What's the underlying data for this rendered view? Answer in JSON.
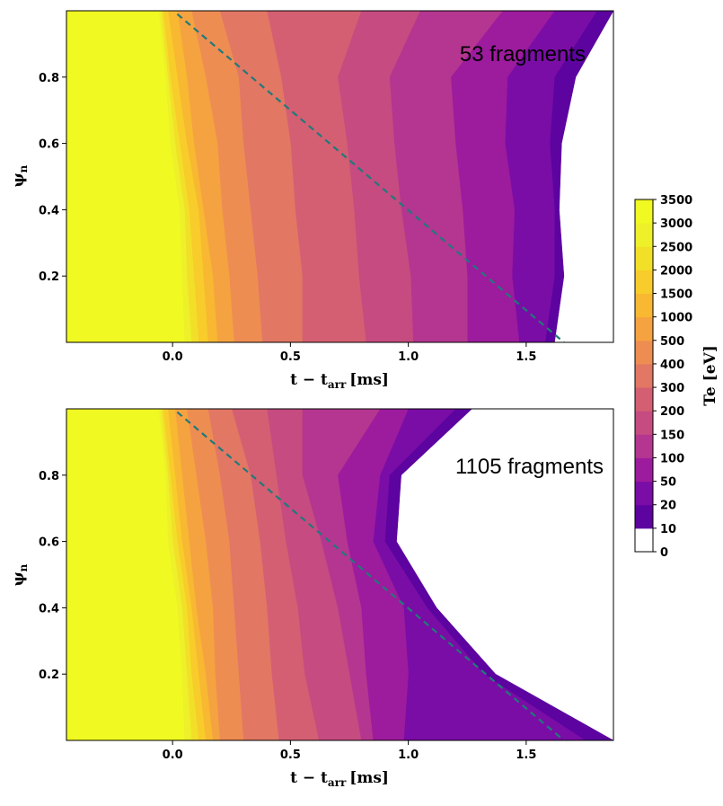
{
  "chart_data": [
    {
      "type": "heatmap",
      "subtype": "filled-contour",
      "xlabel_main": "t − t",
      "xlabel_sub": "arr",
      "xlabel_unit": "[ms]",
      "ylabel_main": "ψ",
      "ylabel_sub": "n",
      "xlim": [
        -0.45,
        1.87
      ],
      "ylim": [
        0.0,
        1.0
      ],
      "x_ticks": [
        0.0,
        0.5,
        1.0,
        1.5
      ],
      "x_tick_labels": [
        "0.0",
        "0.5",
        "1.0",
        "1.5"
      ],
      "y_ticks": [
        0.2,
        0.4,
        0.6,
        0.8
      ],
      "y_tick_labels": [
        "0.2",
        "0.4",
        "0.6",
        "0.8"
      ],
      "annotation": "53 fragments",
      "reference_line": {
        "style": "dashed",
        "color": "#1f7a7a",
        "x": [
          0.02,
          1.66
        ],
        "y": [
          0.99,
          0.0
        ]
      },
      "te_profile_lower_bounds_eV": [
        0,
        10,
        20,
        50,
        100,
        150,
        200,
        300,
        400,
        500,
        1000,
        1500,
        2000,
        2500,
        3000
      ],
      "level_boundaries_x_at_psi": [
        {
          "psi": 0.0,
          "x": [
            1.62,
            1.58,
            1.47,
            1.25,
            1.02,
            0.82,
            0.55,
            0.38,
            0.26,
            0.19,
            0.15,
            0.11,
            0.08,
            0.05
          ]
        },
        {
          "psi": 0.2,
          "x": [
            1.66,
            1.62,
            1.44,
            1.25,
            1.01,
            0.79,
            0.55,
            0.36,
            0.24,
            0.17,
            0.13,
            0.09,
            0.06,
            0.04
          ]
        },
        {
          "psi": 0.4,
          "x": [
            1.64,
            1.62,
            1.45,
            1.23,
            0.97,
            0.77,
            0.52,
            0.33,
            0.21,
            0.13,
            0.11,
            0.07,
            0.05,
            0.03
          ]
        },
        {
          "psi": 0.6,
          "x": [
            1.65,
            1.6,
            1.41,
            1.2,
            0.94,
            0.74,
            0.5,
            0.3,
            0.19,
            0.09,
            0.06,
            0.03,
            0.01,
            -0.01
          ]
        },
        {
          "psi": 0.8,
          "x": [
            1.71,
            1.62,
            1.42,
            1.18,
            0.92,
            0.7,
            0.46,
            0.28,
            0.14,
            0.06,
            0.02,
            -0.01,
            -0.02,
            -0.03
          ]
        },
        {
          "psi": 1.0,
          "x": [
            1.87,
            1.8,
            1.62,
            1.4,
            1.05,
            0.8,
            0.4,
            0.2,
            0.08,
            0.02,
            -0.02,
            -0.04,
            -0.05,
            -0.06
          ]
        }
      ]
    },
    {
      "type": "heatmap",
      "subtype": "filled-contour",
      "xlabel_main": "t − t",
      "xlabel_sub": "arr",
      "xlabel_unit": "[ms]",
      "ylabel_main": "ψ",
      "ylabel_sub": "n",
      "xlim": [
        -0.45,
        1.87
      ],
      "ylim": [
        0.0,
        1.0
      ],
      "x_ticks": [
        0.0,
        0.5,
        1.0,
        1.5
      ],
      "x_tick_labels": [
        "0.0",
        "0.5",
        "1.0",
        "1.5"
      ],
      "y_ticks": [
        0.2,
        0.4,
        0.6,
        0.8
      ],
      "y_tick_labels": [
        "0.2",
        "0.4",
        "0.6",
        "0.8"
      ],
      "annotation": "1105 fragments",
      "reference_line": {
        "style": "dashed",
        "color": "#1f7a7a",
        "x": [
          0.02,
          1.66
        ],
        "y": [
          0.99,
          0.0
        ]
      },
      "te_profile_lower_bounds_eV": [
        0,
        10,
        20,
        50,
        100,
        150,
        200,
        300,
        400,
        500,
        1000,
        1500,
        2000,
        2500,
        3000
      ],
      "level_boundaries_x_at_psi": [
        {
          "psi": 0.0,
          "x": [
            1.87,
            1.75,
            0.98,
            0.85,
            0.8,
            0.62,
            0.45,
            0.3,
            0.2,
            0.17,
            0.14,
            0.11,
            0.08,
            0.05
          ]
        },
        {
          "psi": 0.2,
          "x": [
            1.37,
            1.32,
            1.0,
            0.82,
            0.75,
            0.56,
            0.42,
            0.28,
            0.18,
            0.14,
            0.11,
            0.08,
            0.06,
            0.04
          ]
        },
        {
          "psi": 0.4,
          "x": [
            1.12,
            1.08,
            0.98,
            0.8,
            0.7,
            0.53,
            0.4,
            0.26,
            0.17,
            0.1,
            0.08,
            0.06,
            0.04,
            0.02
          ]
        },
        {
          "psi": 0.6,
          "x": [
            0.95,
            0.9,
            0.85,
            0.74,
            0.63,
            0.48,
            0.37,
            0.24,
            0.14,
            0.07,
            0.04,
            0.02,
            0.0,
            -0.02
          ]
        },
        {
          "psi": 0.8,
          "x": [
            0.97,
            0.92,
            0.88,
            0.7,
            0.55,
            0.44,
            0.33,
            0.2,
            0.1,
            0.04,
            0.01,
            -0.01,
            -0.02,
            -0.03
          ]
        },
        {
          "psi": 1.0,
          "x": [
            1.27,
            1.2,
            1.0,
            0.88,
            0.55,
            0.4,
            0.25,
            0.15,
            0.06,
            0.01,
            -0.02,
            -0.04,
            -0.05,
            -0.06
          ]
        }
      ]
    }
  ],
  "colorbar": {
    "label": "Te [eV]",
    "levels": [
      0,
      10,
      20,
      50,
      100,
      150,
      200,
      300,
      400,
      500,
      1000,
      1500,
      2000,
      2500,
      3000,
      3500
    ],
    "level_labels": [
      "0",
      "10",
      "20",
      "50",
      "100",
      "150",
      "200",
      "300",
      "400",
      "500",
      "1000",
      "1500",
      "2000",
      "2500",
      "3000",
      "3500"
    ],
    "colors": [
      "#ffffff",
      "#5c03a0",
      "#7a0da6",
      "#9d1b9d",
      "#b43690",
      "#c64b80",
      "#d45f72",
      "#e27764",
      "#ee8d52",
      "#f5a340",
      "#f8b832",
      "#f8cc2a",
      "#f2e028",
      "#eef02a",
      "#f0f921"
    ]
  }
}
